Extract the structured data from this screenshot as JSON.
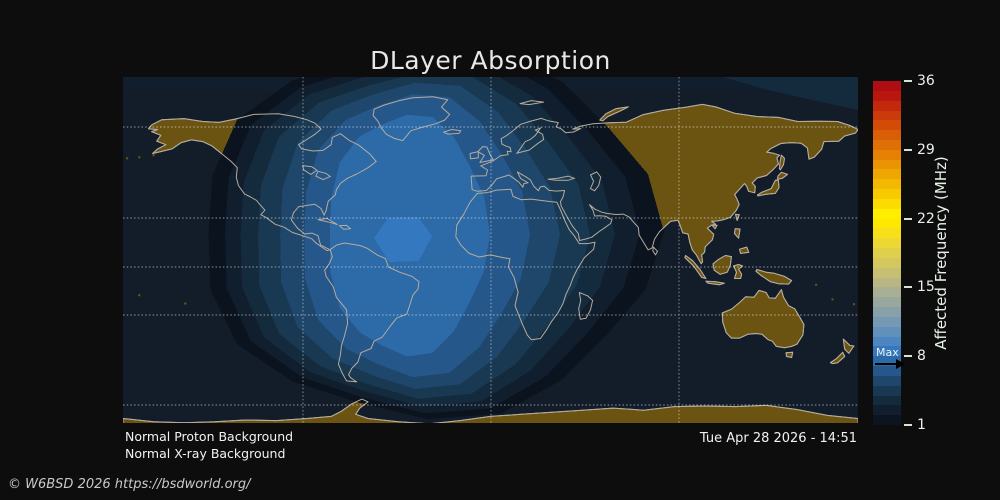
{
  "title": "DLayer Absorption",
  "colorbar": {
    "title": "Affected Frequency (MHz)",
    "min": 1,
    "max": 36,
    "ticks": [
      36,
      29,
      22,
      15,
      8,
      1
    ],
    "max_marker_label": "Max",
    "max_marker_value_mhz": 8,
    "stops_bottom_to_top": [
      "#0c141f",
      "#101e2d",
      "#142a3d",
      "#193852",
      "#1f476b",
      "#26578a",
      "#2d6aa8",
      "#3478bf",
      "#4b86c1",
      "#6191bb",
      "#7599b2",
      "#88a1a9",
      "#99a89e",
      "#a9af92",
      "#b8b783",
      "#c7bf71",
      "#d4c75e",
      "#e0cf4a",
      "#ecd833",
      "#f7e01a",
      "#ffe800",
      "#ffee00",
      "#fbdc00",
      "#f7ca00",
      "#f3b801",
      "#efa602",
      "#ea9403",
      "#e58204",
      "#df7005",
      "#d95e07",
      "#d24c08",
      "#ca3a0a",
      "#c2280c",
      "#b8160e",
      "#ae0d12"
    ]
  },
  "absorption_bands": [
    {
      "mhz_at_least": 1,
      "color": "#0b131e"
    },
    {
      "mhz_at_least": 2,
      "color": "#101e2d"
    },
    {
      "mhz_at_least": 3,
      "color": "#142a3d"
    },
    {
      "mhz_at_least": 4,
      "color": "#193852"
    },
    {
      "mhz_at_least": 5,
      "color": "#1f476b"
    },
    {
      "mhz_at_least": 6,
      "color": "#26578a"
    },
    {
      "mhz_at_least": 7,
      "color": "#2d6aa8"
    },
    {
      "mhz_at_least": 8,
      "color": "#3478bf"
    }
  ],
  "map": {
    "ocean_color": "#131c29",
    "night_land_color": "#6b5412",
    "coastline_color": "#b5ac9e",
    "grid_color": "#ffffff"
  },
  "status_lines": [
    "Normal Proton Background",
    "Normal X-ray Background"
  ],
  "timestamp": "Tue Apr 28 2026 - 14:51",
  "copyright": "© W6BSD 2026 https://bsdworld.org/"
}
